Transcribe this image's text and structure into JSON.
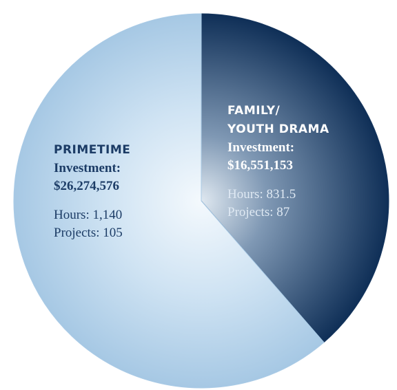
{
  "chart_data": {
    "type": "pie",
    "categories": [
      "FAMILY/\nYOUTH DRAMA",
      "PRIMETIME"
    ],
    "values": [
      16551153,
      26274576
    ],
    "value_labels": [
      "$16,551,153",
      "$26,274,576"
    ],
    "value_caption": "Investment:",
    "hours_labels": [
      "Hours: 831.5",
      "Hours: 1,140"
    ],
    "projects_labels": [
      "Projects: 87",
      "Projects: 105"
    ],
    "colors": [
      "#17375f",
      "#aacbe6"
    ],
    "start_angle": 0,
    "direction": "clockwise"
  }
}
